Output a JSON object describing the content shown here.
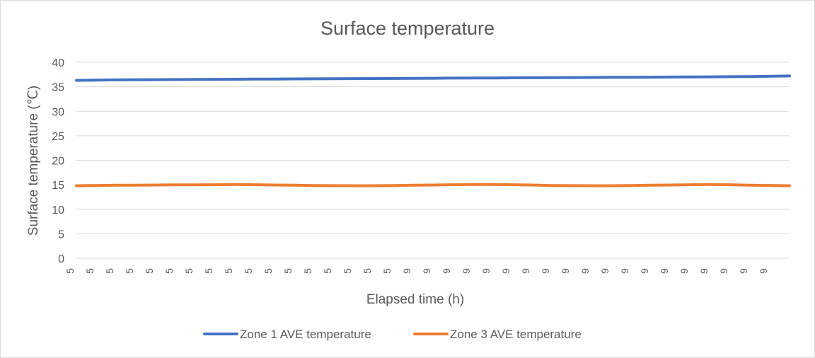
{
  "chart_data": {
    "type": "line",
    "title": "Surface temperature",
    "xlabel": "Elapsed time (h)",
    "ylabel": "Surface temperature (℃)",
    "ylim": [
      0,
      40
    ],
    "yticks": [
      "0",
      "5",
      "10",
      "15",
      "20",
      "25",
      "30",
      "35",
      "40"
    ],
    "grid": true,
    "legend": "bottom",
    "x": [
      "5",
      "5",
      "5",
      "5",
      "5",
      "5",
      "5",
      "5",
      "5",
      "5",
      "5",
      "5",
      "5",
      "5",
      "5",
      "5",
      "5",
      "9",
      "9",
      "9",
      "9",
      "9",
      "9",
      "9",
      "9",
      "9",
      "9",
      "9",
      "9",
      "9",
      "9",
      "9",
      "9",
      "9",
      "9",
      "9"
    ],
    "series": [
      {
        "name": "Zone 1 AVE temperature",
        "color": "#4472c4",
        "values": [
          36.3,
          36.35,
          36.4,
          36.42,
          36.45,
          36.48,
          36.5,
          36.52,
          36.54,
          36.56,
          36.58,
          36.6,
          36.62,
          36.64,
          36.66,
          36.68,
          36.7,
          36.72,
          36.74,
          36.76,
          36.78,
          36.8,
          36.82,
          36.84,
          36.86,
          36.88,
          36.9,
          36.92,
          36.94,
          36.96,
          36.98,
          37.0,
          37.02,
          37.05,
          37.08,
          37.2
        ]
      },
      {
        "name": "Zone 3 AVE temperature",
        "color": "#ed7d31",
        "values": [
          14.8,
          14.85,
          14.9,
          14.92,
          14.95,
          14.97,
          14.98,
          15.0,
          15.05,
          15.0,
          14.95,
          14.9,
          14.85,
          14.82,
          14.8,
          14.8,
          14.85,
          14.9,
          14.95,
          15.0,
          15.05,
          15.05,
          15.0,
          14.95,
          14.85,
          14.82,
          14.8,
          14.8,
          14.85,
          14.9,
          14.95,
          15.0,
          15.05,
          15.0,
          14.9,
          14.8
        ]
      }
    ]
  }
}
